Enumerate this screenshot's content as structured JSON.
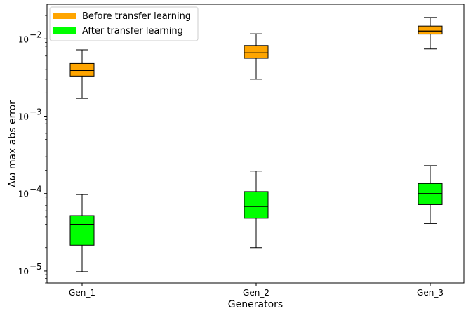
{
  "chart_data": {
    "type": "box",
    "xlabel": "Generators",
    "ylabel": "Δω max abs error",
    "yscale": "log",
    "ylim": [
      7e-06,
      0.028
    ],
    "categories": [
      "Gen_1",
      "Gen_2",
      "Gen_3"
    ],
    "y_ticks": [
      {
        "value": 1e-05,
        "mantissa": "10",
        "exponent": "−5"
      },
      {
        "value": 0.0001,
        "mantissa": "10",
        "exponent": "−4"
      },
      {
        "value": 0.001,
        "mantissa": "10",
        "exponent": "−3"
      },
      {
        "value": 0.01,
        "mantissa": "10",
        "exponent": "−2"
      }
    ],
    "legend_position": "top-left",
    "series": [
      {
        "name": "Before transfer learning",
        "color": "#FFA500",
        "boxes": [
          {
            "whisker_low": 0.0017,
            "q1": 0.0033,
            "median": 0.0039,
            "q3": 0.0048,
            "whisker_high": 0.0072
          },
          {
            "whisker_low": 0.003,
            "q1": 0.0056,
            "median": 0.0066,
            "q3": 0.0082,
            "whisker_high": 0.0116
          },
          {
            "whisker_low": 0.0074,
            "q1": 0.0115,
            "median": 0.0126,
            "q3": 0.0146,
            "whisker_high": 0.0189
          }
        ]
      },
      {
        "name": "After transfer learning",
        "color": "#00FF00",
        "boxes": [
          {
            "whisker_low": 9.8e-06,
            "q1": 2.15e-05,
            "median": 4e-05,
            "q3": 5.2e-05,
            "whisker_high": 9.7e-05
          },
          {
            "whisker_low": 2e-05,
            "q1": 4.8e-05,
            "median": 6.8e-05,
            "q3": 0.000106,
            "whisker_high": 0.000195
          },
          {
            "whisker_low": 4.1e-05,
            "q1": 7.2e-05,
            "median": 0.0001,
            "q3": 0.000135,
            "whisker_high": 0.00023
          }
        ]
      }
    ]
  }
}
